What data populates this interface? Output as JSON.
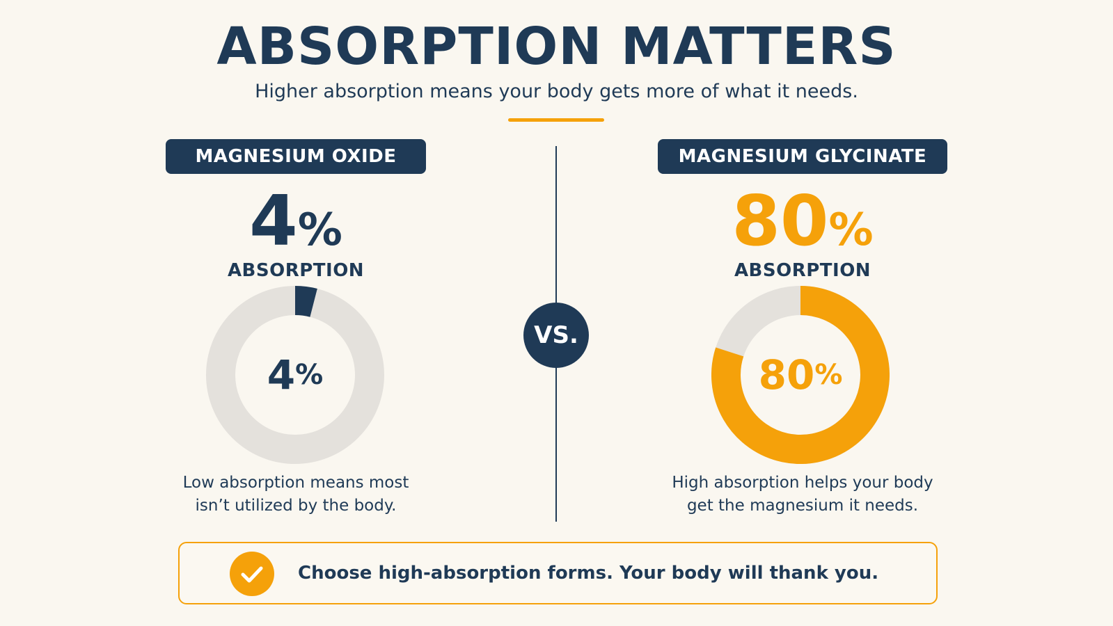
{
  "header": {
    "title": "ABSORPTION MATTERS",
    "subtitle": "Higher absorption means your body gets more of what it needs."
  },
  "vs_label": "VS.",
  "colors": {
    "navy": "#1f3a56",
    "orange": "#f5a10a",
    "track": "#e4e1dc",
    "background": "#faf7f0"
  },
  "chart_data": [
    {
      "type": "pie",
      "title": "MAGNESIUM OXIDE",
      "value_number": "4",
      "value_unit": "%",
      "metric_label": "ABSORPTION",
      "center_number": "4",
      "center_unit": "%",
      "value": 4,
      "total": 100,
      "color": "#1f3a56",
      "description": [
        "Low absorption means most",
        "isn’t utilized by the body."
      ]
    },
    {
      "type": "pie",
      "title": "MAGNESIUM GLYCINATE",
      "value_number": "80",
      "value_unit": "%",
      "metric_label": "ABSORPTION",
      "center_number": "80",
      "center_unit": "%",
      "value": 80,
      "total": 100,
      "color": "#f5a10a",
      "description": [
        "High absorption helps your body",
        "get the magnesium it needs."
      ]
    }
  ],
  "banner": {
    "icon": "check-icon",
    "text": "Choose high-absorption forms.  Your body will thank you."
  }
}
